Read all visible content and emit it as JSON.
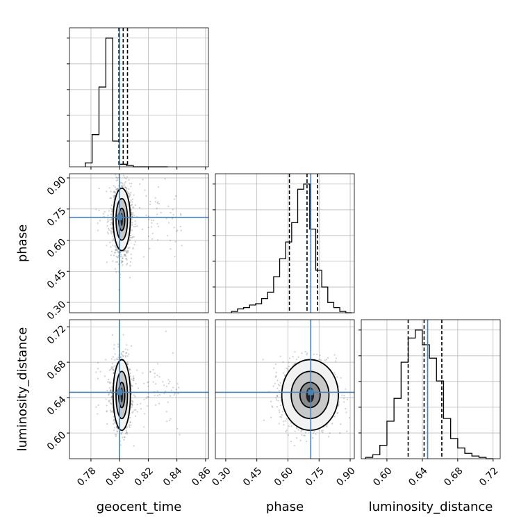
{
  "colors": {
    "truth": "#4682b4",
    "hist": "#000000",
    "grid": "#b0b0b0",
    "scatter": "#555555"
  },
  "chart_data": {
    "type": "corner",
    "parameters": [
      {
        "name": "geocent_time",
        "label": "geocent_time",
        "range": [
          0.765,
          0.862
        ],
        "ticks": [
          "0.78",
          "0.80",
          "0.82",
          "0.84",
          "0.86"
        ],
        "tick_values": [
          0.78,
          0.8,
          0.82,
          0.84,
          0.86
        ],
        "truth": 0.8,
        "quantiles": [
          0.7995,
          0.8025,
          0.8055
        ],
        "hist_edges": [
          0.776,
          0.7808,
          0.7856,
          0.7904,
          0.7952,
          0.8,
          0.8048,
          0.8096,
          0.8144,
          0.8192,
          0.824,
          0.8288,
          0.8336
        ],
        "hist_counts": [
          3,
          25,
          62,
          100,
          20,
          2,
          1,
          0,
          0,
          0,
          0,
          0
        ]
      },
      {
        "name": "phase",
        "label": "phase",
        "range": [
          0.25,
          0.92
        ],
        "ticks": [
          "0.30",
          "0.45",
          "0.60",
          "0.75",
          "0.90"
        ],
        "tick_values": [
          0.3,
          0.45,
          0.6,
          0.75,
          0.9
        ],
        "truth": 0.71,
        "quantiles": [
          0.607,
          0.692,
          0.743
        ],
        "hist_edges": [
          0.328,
          0.357,
          0.386,
          0.415,
          0.444,
          0.473,
          0.502,
          0.531,
          0.56,
          0.589,
          0.618,
          0.647,
          0.676,
          0.705,
          0.734,
          0.763,
          0.792,
          0.821,
          0.85,
          0.879,
          0.908
        ],
        "hist_counts": [
          1,
          3,
          4,
          6,
          7,
          11,
          16,
          28,
          42,
          55,
          70,
          96,
          100,
          65,
          33,
          20,
          8,
          4,
          1,
          0
        ]
      },
      {
        "name": "luminosity_distance",
        "label": "luminosity_distance",
        "range": [
          0.571,
          0.728
        ],
        "ticks": [
          "0.60",
          "0.64",
          "0.68",
          "0.72"
        ],
        "tick_values": [
          0.6,
          0.64,
          0.68,
          0.72
        ],
        "truth": 0.646,
        "quantiles": [
          0.624,
          0.642,
          0.662
        ],
        "hist_edges": [
          0.576,
          0.584,
          0.592,
          0.6,
          0.608,
          0.616,
          0.624,
          0.632,
          0.64,
          0.648,
          0.656,
          0.664,
          0.672,
          0.68,
          0.688,
          0.696,
          0.704,
          0.712,
          0.72
        ],
        "hist_counts": [
          1,
          3,
          10,
          28,
          45,
          72,
          90,
          96,
          85,
          75,
          58,
          30,
          15,
          8,
          4,
          2,
          1,
          0
        ]
      }
    ],
    "grid": true,
    "truth_lines": true,
    "quantile_lines": "dashed",
    "contour_levels": 3
  }
}
